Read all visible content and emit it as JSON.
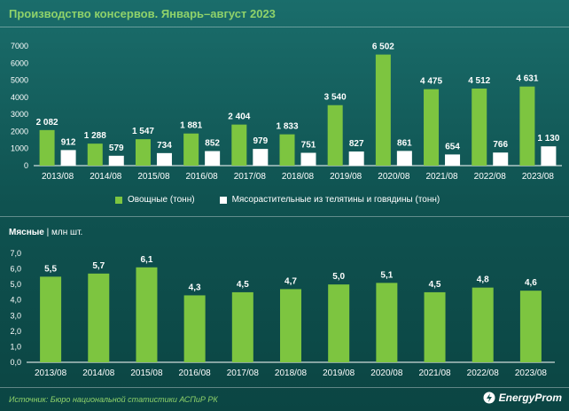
{
  "title": "Производство консервов. Январь–август 2023",
  "colors": {
    "green": "#7dc540",
    "white": "#ffffff",
    "title": "#8fd26a"
  },
  "legend": {
    "series1": "Овощные (тонн)",
    "series2": "Мясорастительные из телятины и говядины (тонн)"
  },
  "subchart": {
    "bold": "Мясные",
    "unit": "| млн шт."
  },
  "footer": {
    "source": "Источник: Бюро национальной статистики АСПиР РК",
    "brand": "EnergyProm"
  },
  "chart_data": [
    {
      "type": "bar",
      "title": "Производство консервов. Январь–август 2023",
      "categories": [
        "2013/08",
        "2014/08",
        "2015/08",
        "2016/08",
        "2017/08",
        "2018/08",
        "2019/08",
        "2020/08",
        "2021/08",
        "2022/08",
        "2023/08"
      ],
      "series": [
        {
          "name": "Овощные (тонн)",
          "color": "#7dc540",
          "values": [
            2082,
            1288,
            1547,
            1881,
            2404,
            1833,
            3540,
            6502,
            4475,
            4512,
            4631
          ],
          "labels": [
            "2 082",
            "1 288",
            "1 547",
            "1 881",
            "2 404",
            "1 833",
            "3 540",
            "6 502",
            "4 475",
            "4 512",
            "4 631"
          ]
        },
        {
          "name": "Мясорастительные из телятины и говядины (тонн)",
          "color": "#ffffff",
          "values": [
            912,
            579,
            734,
            852,
            979,
            751,
            827,
            861,
            654,
            766,
            1130
          ],
          "labels": [
            "912",
            "579",
            "734",
            "852",
            "979",
            "751",
            "827",
            "861",
            "654",
            "766",
            "1 130"
          ]
        }
      ],
      "yticks": [
        "0",
        "1000",
        "2000",
        "3000",
        "4000",
        "5000",
        "6000",
        "7000"
      ],
      "ylim": [
        0,
        7000
      ],
      "legend": "bottom"
    },
    {
      "type": "bar",
      "title": "Мясные | млн шт.",
      "categories": [
        "2013/08",
        "2014/08",
        "2015/08",
        "2016/08",
        "2017/08",
        "2018/08",
        "2019/08",
        "2020/08",
        "2021/08",
        "2022/08",
        "2023/08"
      ],
      "series": [
        {
          "color": "#7dc540",
          "values": [
            5.5,
            5.7,
            6.1,
            4.3,
            4.5,
            4.7,
            5.0,
            5.1,
            4.5,
            4.8,
            4.6
          ],
          "labels": [
            "5,5",
            "5,7",
            "6,1",
            "4,3",
            "4,5",
            "4,7",
            "5,0",
            "5,1",
            "4,5",
            "4,8",
            "4,6"
          ]
        }
      ],
      "yticks": [
        "0,0",
        "1,0",
        "2,0",
        "3,0",
        "4,0",
        "5,0",
        "6,0",
        "7,0"
      ],
      "ylim": [
        0,
        7
      ]
    }
  ]
}
